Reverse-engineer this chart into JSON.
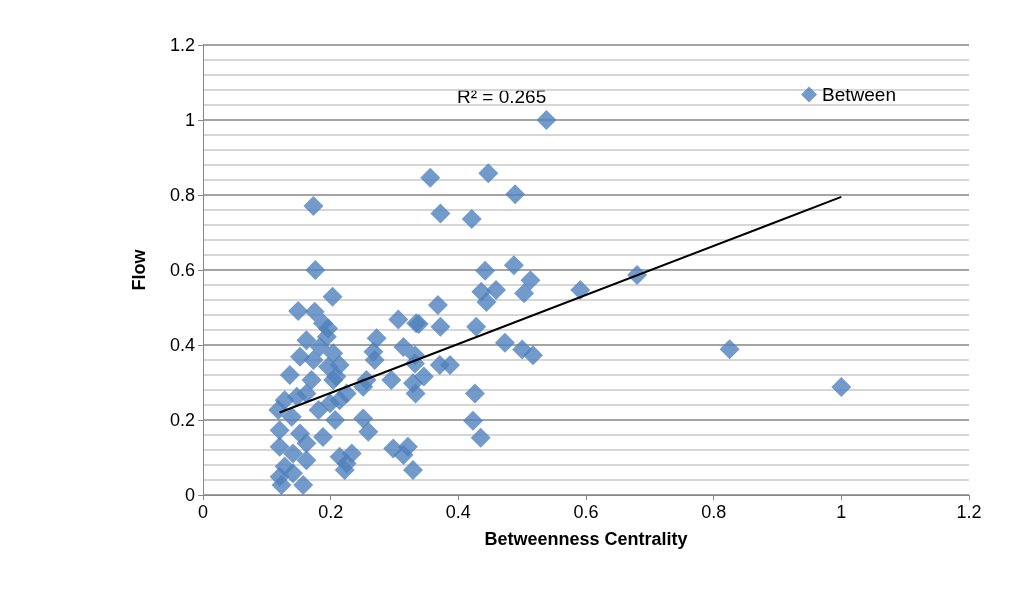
{
  "chart_data": {
    "type": "scatter",
    "xlabel": "Betweenness Centrality",
    "ylabel": "Flow",
    "annotations": [
      "R² = 0.265"
    ],
    "xlim": [
      0,
      1.2
    ],
    "ylim": [
      0,
      1.2
    ],
    "xticks": [
      0,
      0.2,
      0.4,
      0.6,
      0.8,
      1,
      1.2
    ],
    "yticks": [
      0,
      0.2,
      0.4,
      0.6,
      0.8,
      1,
      1.2
    ],
    "grid": "y",
    "legend": "top right",
    "series": [
      {
        "name": "Between",
        "marker": "diamond",
        "color": "#4f81bd",
        "x": [
          0.173,
          0.176,
          0.203,
          0.149,
          0.175,
          0.188,
          0.196,
          0.194,
          0.162,
          0.183,
          0.204,
          0.152,
          0.173,
          0.214,
          0.136,
          0.17,
          0.204,
          0.209,
          0.196,
          0.128,
          0.147,
          0.162,
          0.118,
          0.181,
          0.199,
          0.214,
          0.225,
          0.207,
          0.139,
          0.12,
          0.152,
          0.188,
          0.162,
          0.12,
          0.141,
          0.162,
          0.128,
          0.12,
          0.123,
          0.157,
          0.141,
          0.214,
          0.225,
          0.233,
          0.222,
          0.251,
          0.256,
          0.251,
          0.259,
          0.272,
          0.267,
          0.269,
          0.295,
          0.306,
          0.314,
          0.298,
          0.314,
          0.321,
          0.329,
          0.334,
          0.538,
          0.356,
          0.447,
          0.489,
          0.372,
          0.421,
          0.442,
          0.487,
          0.513,
          0.503,
          0.459,
          0.436,
          0.444,
          0.591,
          0.68,
          0.368,
          0.338,
          0.372,
          0.428,
          0.332,
          0.473,
          0.5,
          0.517,
          0.371,
          0.387,
          0.332,
          0.346,
          0.329,
          0.333,
          0.426,
          0.423,
          0.435,
          0.825,
          1.0
        ],
        "values": [
          0.771,
          0.6,
          0.529,
          0.491,
          0.489,
          0.458,
          0.444,
          0.422,
          0.413,
          0.395,
          0.378,
          0.369,
          0.36,
          0.347,
          0.32,
          0.307,
          0.307,
          0.316,
          0.342,
          0.253,
          0.262,
          0.271,
          0.227,
          0.227,
          0.245,
          0.253,
          0.271,
          0.2,
          0.209,
          0.173,
          0.164,
          0.155,
          0.138,
          0.129,
          0.111,
          0.093,
          0.076,
          0.049,
          0.027,
          0.027,
          0.058,
          0.102,
          0.084,
          0.111,
          0.067,
          0.289,
          0.307,
          0.204,
          0.169,
          0.418,
          0.382,
          0.36,
          0.307,
          0.468,
          0.395,
          0.124,
          0.107,
          0.129,
          0.067,
          0.458,
          1.0,
          0.846,
          0.858,
          0.802,
          0.751,
          0.736,
          0.598,
          0.613,
          0.573,
          0.538,
          0.547,
          0.542,
          0.515,
          0.547,
          0.587,
          0.507,
          0.456,
          0.449,
          0.449,
          0.373,
          0.406,
          0.388,
          0.373,
          0.347,
          0.347,
          0.351,
          0.316,
          0.298,
          0.271,
          0.271,
          0.198,
          0.153,
          0.389,
          0.288
        ]
      },
      {
        "type": "line",
        "marker": "none",
        "color": "#000000",
        "x": [
          0.12,
          1.0
        ],
        "values": [
          0.22,
          0.795
        ]
      }
    ]
  }
}
